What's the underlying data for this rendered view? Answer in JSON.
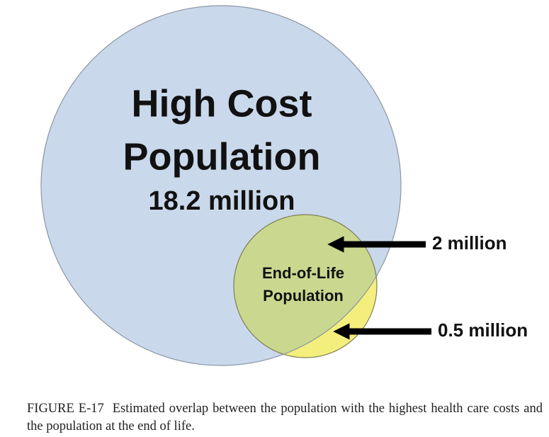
{
  "diagram": {
    "sets": [
      {
        "label_lines": [
          "High Cost",
          "Population"
        ],
        "size": "18.2 million"
      },
      {
        "label_lines": [
          "End-of-Life",
          "Population"
        ]
      }
    ],
    "annotations": [
      {
        "label": "2 million"
      },
      {
        "label": "0.5 million"
      }
    ]
  },
  "caption": {
    "figure_label": "FIGURE E-17",
    "text": "Estimated overlap between the population with the highest health care costs and the population at the end of life."
  }
}
